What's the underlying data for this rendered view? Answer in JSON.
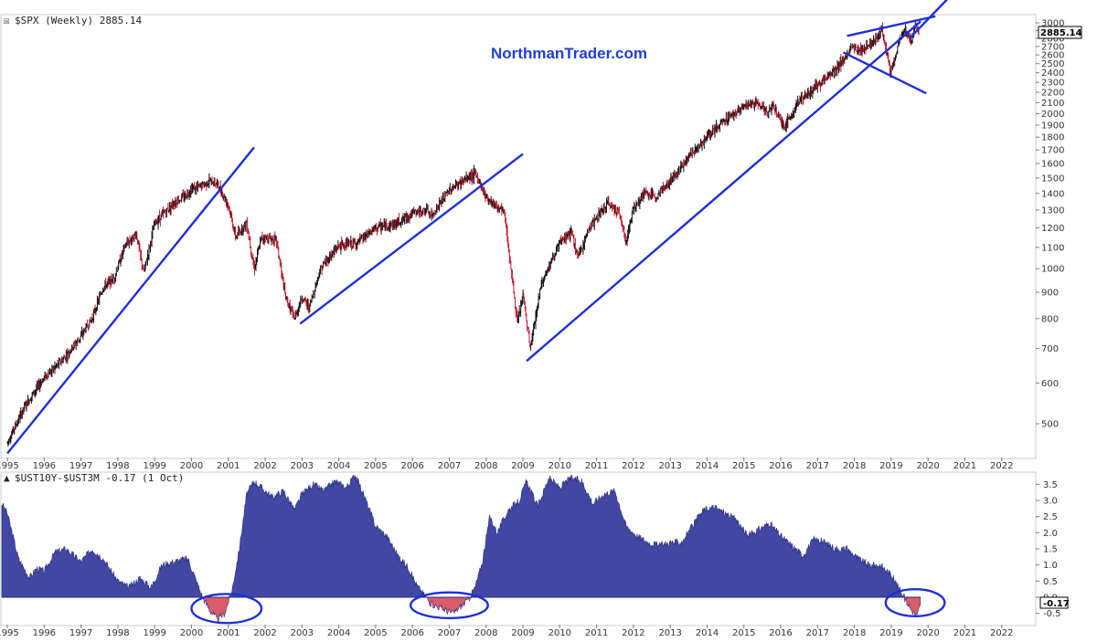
{
  "chart_data": [
    {
      "type": "candlestick",
      "title": "$SPX (Weekly) 2885.14",
      "watermark": "NorthmanTrader.com",
      "last_value_label": "2885.14",
      "y_scale": "log",
      "ylim": [
        430,
        3100
      ],
      "y_ticks": [
        500,
        600,
        700,
        800,
        900,
        1000,
        1100,
        1200,
        1300,
        1400,
        1500,
        1600,
        1700,
        1800,
        1900,
        2000,
        2100,
        2200,
        2300,
        2400,
        2500,
        2600,
        2700,
        2800,
        2900,
        3000
      ],
      "x_ticks": [
        "1995",
        "1996",
        "1997",
        "1998",
        "1999",
        "2000",
        "2001",
        "2002",
        "2003",
        "2004",
        "2005",
        "2006",
        "2007",
        "2008",
        "2009",
        "2010",
        "2011",
        "2012",
        "2013",
        "2014",
        "2015",
        "2016",
        "2017",
        "2018",
        "2019",
        "2020",
        "2021",
        "2022"
      ],
      "xlim": [
        1994.85,
        2022.9
      ],
      "series": [
        {
          "x": [
            1995.0,
            1995.5,
            1996.0,
            1996.5,
            1997.0,
            1997.3,
            1997.6,
            1997.9,
            1998.2,
            1998.5,
            1998.7,
            1999.0,
            1999.5,
            1999.8,
            2000.0,
            2000.2,
            2000.5,
            2000.7,
            2001.0,
            2001.2,
            2001.5,
            2001.7,
            2001.9,
            2002.3,
            2002.55,
            2002.8,
            2003.0,
            2003.2,
            2003.5,
            2004.0,
            2004.5,
            2005.0,
            2005.5,
            2006.0,
            2006.4,
            2006.5,
            2007.0,
            2007.5,
            2007.7,
            2007.8,
            2008.0,
            2008.5,
            2008.75,
            2008.85,
            2009.0,
            2009.2,
            2009.5,
            2010.0,
            2010.3,
            2010.5,
            2010.8,
            2011.3,
            2011.6,
            2011.8,
            2012.0,
            2012.3,
            2012.6,
            2013.0,
            2013.5,
            2014.0,
            2014.5,
            2015.0,
            2015.4,
            2015.65,
            2015.8,
            2016.1,
            2016.5,
            2017.0,
            2017.5,
            2018.0,
            2018.1,
            2018.5,
            2018.75,
            2018.98,
            2019.3,
            2019.4,
            2019.55,
            2019.65,
            2019.75
          ],
          "close": [
            460,
            545,
            615,
            665,
            740,
            800,
            920,
            960,
            1110,
            1170,
            980,
            1225,
            1340,
            1380,
            1430,
            1440,
            1480,
            1460,
            1330,
            1150,
            1230,
            1000,
            1150,
            1140,
            880,
            800,
            880,
            840,
            1000,
            1110,
            1120,
            1200,
            1220,
            1280,
            1300,
            1260,
            1420,
            1500,
            1530,
            1480,
            1380,
            1280,
            900,
            780,
            890,
            700,
            940,
            1120,
            1180,
            1050,
            1200,
            1340,
            1290,
            1130,
            1310,
            1400,
            1380,
            1480,
            1650,
            1800,
            1950,
            2060,
            2100,
            2000,
            2080,
            1880,
            2120,
            2270,
            2450,
            2700,
            2640,
            2750,
            2900,
            2400,
            2880,
            2900,
            2750,
            2980,
            2885
          ]
        }
      ],
      "trendlines": [
        {
          "from": [
            1995.0,
            438
          ],
          "to": [
            2001.7,
            1720
          ]
        },
        {
          "from": [
            2002.95,
            782
          ],
          "to": [
            2009.0,
            1670
          ]
        },
        {
          "from": [
            2009.1,
            662
          ],
          "to": [
            2019.8,
            3020
          ]
        },
        {
          "from": [
            2017.8,
            2830
          ],
          "to": [
            2020.2,
            3090
          ]
        },
        {
          "from": [
            2017.7,
            2630
          ],
          "to": [
            2019.95,
            2190
          ]
        },
        {
          "from": [
            2019.5,
            2800
          ],
          "to": [
            2020.55,
            3350
          ]
        }
      ]
    },
    {
      "type": "area",
      "title": "$UST10Y-$UST3M -0.17 (1 Oct)",
      "last_value_label": "-0.17",
      "ylim": [
        -0.85,
        3.85
      ],
      "y_ticks": [
        -0.5,
        0.0,
        0.5,
        1.0,
        1.5,
        2.0,
        2.5,
        3.0,
        3.5
      ],
      "y_tick_labels": [
        "-0.5",
        "0.0",
        "0.5",
        "1.0",
        "1.5",
        "2.0",
        "2.5",
        "3.0",
        "3.5"
      ],
      "x_ticks": [
        "1995",
        "1996",
        "1997",
        "1998",
        "1999",
        "2000",
        "2001",
        "2002",
        "2003",
        "2004",
        "2005",
        "2006",
        "2007",
        "2008",
        "2009",
        "2010",
        "2011",
        "2012",
        "2013",
        "2014",
        "2015",
        "2016",
        "2017",
        "2018",
        "2019",
        "2020",
        "2021",
        "2022"
      ],
      "xlim": [
        1994.85,
        2022.9
      ],
      "series": [
        {
          "x": [
            1994.85,
            1995.0,
            1995.3,
            1995.6,
            1995.8,
            1996.0,
            1996.3,
            1996.6,
            1997.0,
            1997.3,
            1997.6,
            1998.0,
            1998.3,
            1998.6,
            1998.9,
            1999.2,
            1999.5,
            1999.9,
            2000.1,
            2000.3,
            2000.5,
            2000.7,
            2000.9,
            2001.1,
            2001.3,
            2001.5,
            2001.7,
            2001.9,
            2002.2,
            2002.5,
            2002.8,
            2003.0,
            2003.3,
            2003.6,
            2003.9,
            2004.2,
            2004.45,
            2004.7,
            2005.0,
            2005.3,
            2005.6,
            2005.9,
            2006.1,
            2006.3,
            2006.5,
            2006.7,
            2006.9,
            2007.1,
            2007.3,
            2007.5,
            2007.7,
            2007.9,
            2008.1,
            2008.3,
            2008.6,
            2008.9,
            2009.1,
            2009.4,
            2009.7,
            2010.0,
            2010.3,
            2010.6,
            2010.9,
            2011.2,
            2011.5,
            2011.8,
            2012.1,
            2012.4,
            2012.7,
            2013.0,
            2013.3,
            2013.6,
            2013.9,
            2014.2,
            2014.5,
            2014.8,
            2015.1,
            2015.4,
            2015.7,
            2016.0,
            2016.3,
            2016.6,
            2016.9,
            2017.2,
            2017.5,
            2017.8,
            2018.1,
            2018.4,
            2018.7,
            2019.0,
            2019.2,
            2019.4,
            2019.55,
            2019.7,
            2019.8
          ],
          "values": [
            2.9,
            2.6,
            1.2,
            0.6,
            0.9,
            0.8,
            1.4,
            1.5,
            1.1,
            1.5,
            1.2,
            0.5,
            0.3,
            0.6,
            0.3,
            1.0,
            1.1,
            1.2,
            0.6,
            0.0,
            -0.4,
            -0.7,
            -0.5,
            0.2,
            1.5,
            3.2,
            3.6,
            3.4,
            3.1,
            3.3,
            2.7,
            3.2,
            3.5,
            3.3,
            3.6,
            3.4,
            3.8,
            3.1,
            2.2,
            1.9,
            1.3,
            0.9,
            0.4,
            0.1,
            -0.2,
            -0.3,
            -0.4,
            -0.5,
            -0.3,
            -0.1,
            0.3,
            1.1,
            2.5,
            2.0,
            2.7,
            3.0,
            3.6,
            2.8,
            3.7,
            3.4,
            3.7,
            3.6,
            2.9,
            3.2,
            3.3,
            2.2,
            1.9,
            1.7,
            1.6,
            1.7,
            1.7,
            2.2,
            2.7,
            2.8,
            2.6,
            2.4,
            1.9,
            2.1,
            2.3,
            1.9,
            1.6,
            1.3,
            1.8,
            1.7,
            1.5,
            1.5,
            1.2,
            1.0,
            1.0,
            0.7,
            0.3,
            -0.1,
            -0.4,
            -0.6,
            -0.17
          ]
        }
      ],
      "annotations": [
        {
          "type": "ellipse",
          "center": [
            2000.95,
            -0.35
          ],
          "rx_years": 0.95,
          "ry_value": 0.45
        },
        {
          "type": "ellipse",
          "center": [
            2007.0,
            -0.25
          ],
          "rx_years": 1.05,
          "ry_value": 0.4
        },
        {
          "type": "ellipse",
          "center": [
            2019.65,
            -0.17
          ],
          "rx_years": 0.8,
          "ry_value": 0.42
        }
      ]
    }
  ],
  "colors": {
    "up_candle": "#111111",
    "down_candle": "#c0182e",
    "trendline": "#1e2fd8",
    "area_fill": "#4147a3",
    "inversion_fill": "#d85c6a",
    "circle": "#1e2fd8"
  }
}
